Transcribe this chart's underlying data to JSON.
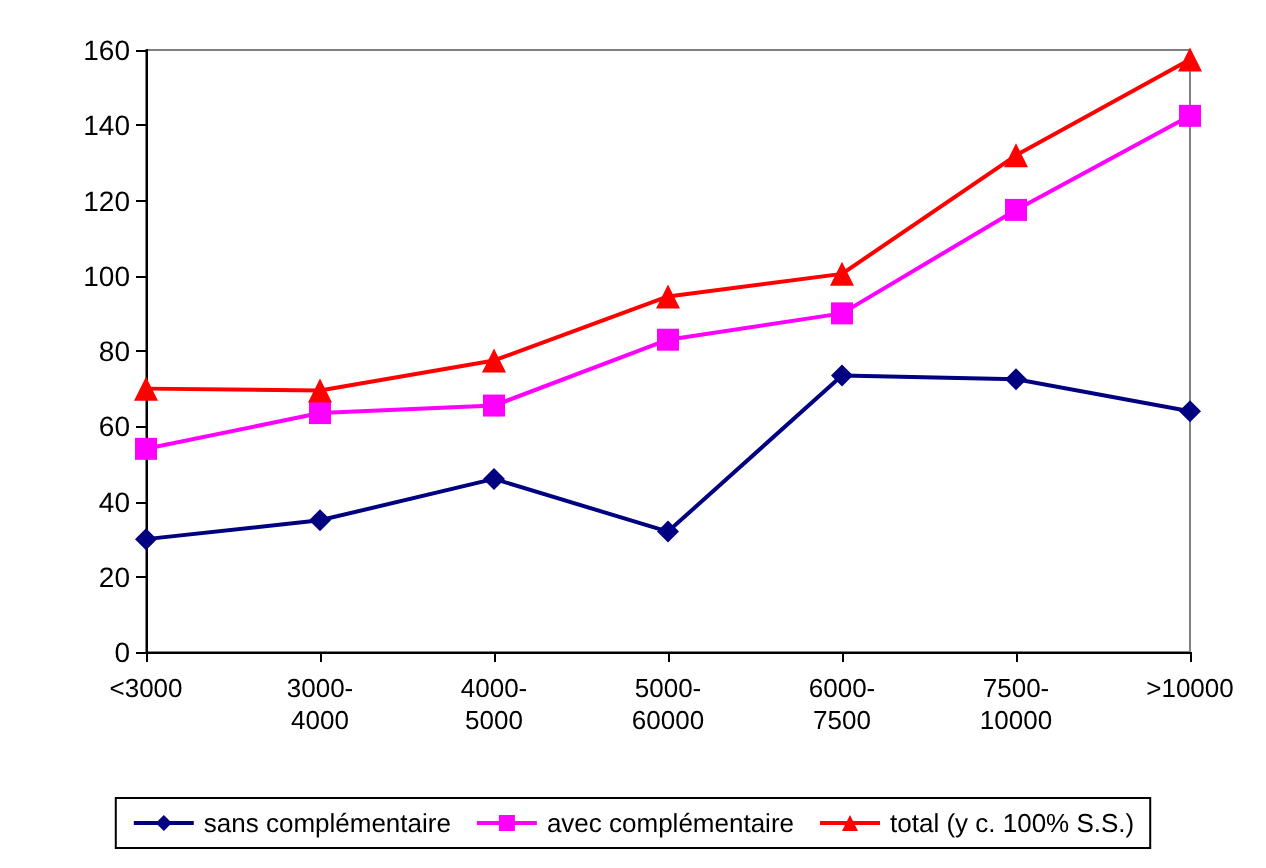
{
  "chart_data": {
    "type": "line",
    "categories": [
      "<3000",
      "3000-\n4000",
      "4000-\n5000",
      "5000-\n60000",
      "6000-\n7500",
      "7500-\n10000",
      ">10000"
    ],
    "series": [
      {
        "name": "sans complémentaire",
        "color": "#000080",
        "marker": "diamond",
        "values": [
          30,
          35,
          46,
          32,
          73.5,
          72.5,
          64
        ]
      },
      {
        "name": "avec complémentaire",
        "color": "#ff00ff",
        "marker": "square",
        "values": [
          54,
          63.5,
          65.5,
          83,
          90,
          117.5,
          142.5
        ]
      },
      {
        "name": "total (y c. 100% S.S.)",
        "color": "#ff0000",
        "marker": "triangle",
        "values": [
          70,
          69.5,
          77.5,
          94.5,
          100.5,
          132,
          157.5
        ]
      }
    ],
    "ylim": [
      0,
      160
    ],
    "yticks": [
      0,
      20,
      40,
      60,
      80,
      100,
      120,
      140,
      160
    ],
    "grid": false,
    "legend": "bottom",
    "line_style": "solid"
  }
}
